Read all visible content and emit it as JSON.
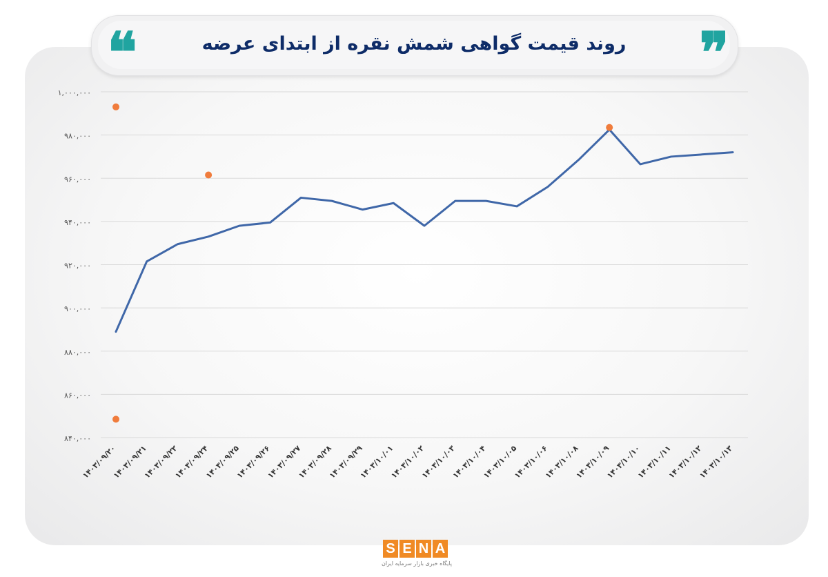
{
  "title": "روند قیمت گواهی شمش نقره از ابتدای عرضه",
  "quote_open": "❝",
  "quote_close": "❞",
  "colors": {
    "line": "#3f67a8",
    "marker": "#f07c3c",
    "grid": "#d9d9d9",
    "title": "#0e2c68",
    "quote": "#20a4a0",
    "logo": "#f08a24"
  },
  "chart_data": {
    "type": "line",
    "title": "روند قیمت گواهی شمش نقره از ابتدای عرضه",
    "xlabel": "",
    "ylabel": "",
    "ylim": [
      840000,
      1000000
    ],
    "yticks": [
      840000,
      860000,
      880000,
      900000,
      920000,
      940000,
      960000,
      980000,
      1000000
    ],
    "ytick_labels": [
      "۸۴۰,۰۰۰",
      "۸۶۰,۰۰۰",
      "۸۸۰,۰۰۰",
      "۹۰۰,۰۰۰",
      "۹۲۰,۰۰۰",
      "۹۴۰,۰۰۰",
      "۹۶۰,۰۰۰",
      "۹۸۰,۰۰۰",
      "۱,۰۰۰,۰۰۰"
    ],
    "categories": [
      "۱۴۰۳/۰۹/۲۰",
      "۱۴۰۳/۰۹/۲۱",
      "۱۴۰۳/۰۹/۲۲",
      "۱۴۰۳/۰۹/۲۴",
      "۱۴۰۳/۰۹/۲۵",
      "۱۴۰۳/۰۹/۲۶",
      "۱۴۰۳/۰۹/۲۷",
      "۱۴۰۳/۰۹/۲۸",
      "۱۴۰۳/۰۹/۲۹",
      "۱۴۰۳/۱۰/۰۱",
      "۱۴۰۳/۱۰/۰۲",
      "۱۴۰۳/۱۰/۰۳",
      "۱۴۰۳/۱۰/۰۴",
      "۱۴۰۳/۱۰/۰۵",
      "۱۴۰۳/۱۰/۰۶",
      "۱۴۰۳/۱۰/۰۸",
      "۱۴۰۳/۱۰/۰۹",
      "۱۴۰۳/۱۰/۱۰",
      "۱۴۰۳/۱۰/۱۱",
      "۱۴۰۳/۱۰/۱۲",
      "۱۴۰۳/۱۰/۱۳"
    ],
    "series": [
      {
        "values": [
          889000,
          921500,
          929500,
          933000,
          938000,
          939500,
          951000,
          949500,
          945500,
          948500,
          938000,
          949500,
          949500,
          947000,
          956000,
          968500,
          982500,
          966500,
          970000,
          971000,
          972000
        ]
      }
    ],
    "markers": [
      {
        "x": "۱۴۰۳/۰۹/۲۰",
        "y": 993000
      },
      {
        "x": "۱۴۰۳/۰۹/۲۴",
        "y": 961500
      },
      {
        "x": "۱۴۰۳/۰۹/۲۰",
        "y": 848500
      },
      {
        "x": "۱۴۰۳/۱۰/۰۹",
        "y": 983500
      }
    ],
    "grid": true,
    "legend": "none"
  },
  "logo": {
    "letters": [
      "S",
      "E",
      "N",
      "A"
    ],
    "subtitle": "پایگاه خبری بازار سرمایه ایران"
  }
}
